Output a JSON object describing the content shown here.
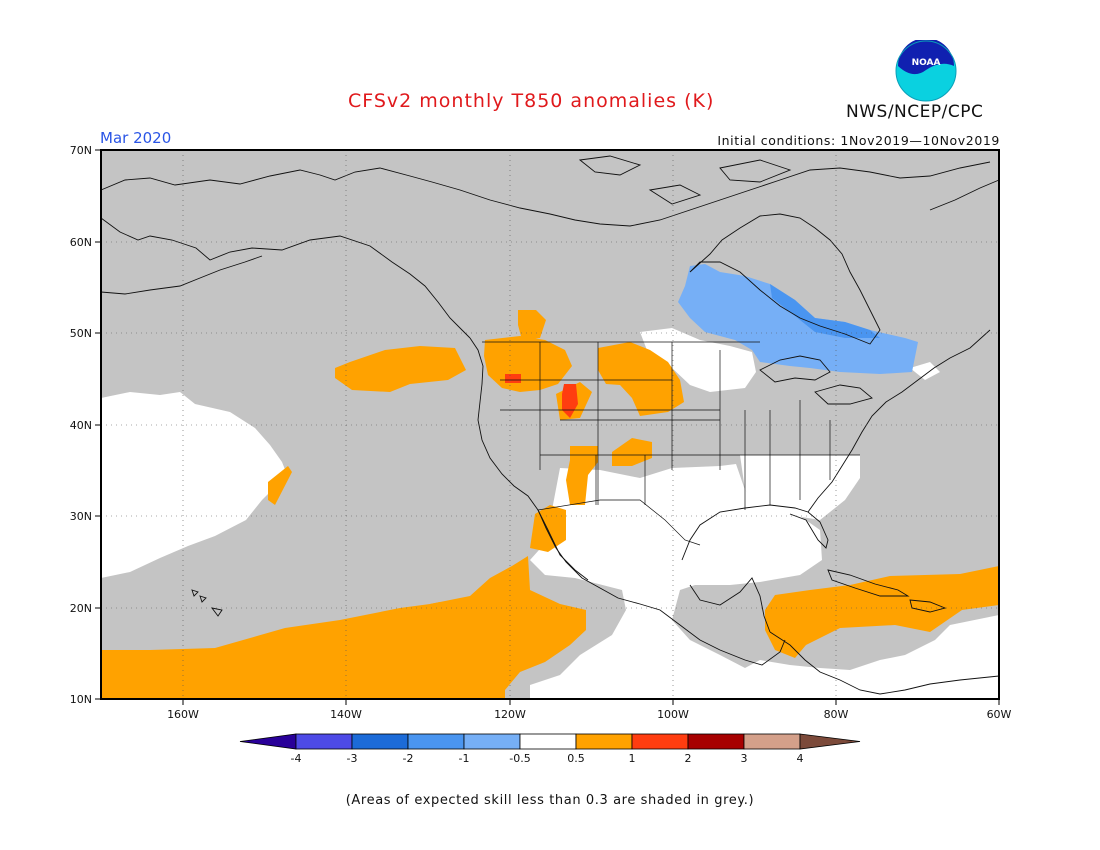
{
  "header": {
    "title": "CFSv2 monthly T850 anomalies (K)",
    "month": "Mar 2020",
    "initial_conditions": "Initial conditions: 1Nov2019—10Nov2019",
    "agency": "NWS/NCEP/CPC",
    "logo_text": "NOAA"
  },
  "map": {
    "projection": "lat-lon",
    "lon_range": [
      -170,
      -60
    ],
    "lat_range": [
      10,
      70
    ],
    "lat_labels": [
      "70N",
      "60N",
      "50N",
      "40N",
      "30N",
      "20N",
      "10N"
    ],
    "lon_labels": [
      "160W",
      "140W",
      "120W",
      "100W",
      "80W",
      "60W"
    ],
    "regions": [
      {
        "category": "skill < 0.3 (grey)",
        "color": "#c4c4c4"
      },
      {
        "category": "-1 to -0.5",
        "color": "#76aff6",
        "area": "Hudson Bay / Ontario"
      },
      {
        "category": "0.5 to 1",
        "color": "#ffa200",
        "area": "Pacific northwest, Rockies, eastern Pacific, Caribbean"
      },
      {
        "category": "1 to 2",
        "color": "#ff3d10",
        "area": "Idaho / Utah spots"
      }
    ]
  },
  "colorbar": {
    "colors": [
      "#290099",
      "#4d4ae6",
      "#1c6bd8",
      "#4a95f0",
      "#76aff6",
      "#ffffff",
      "#ffa200",
      "#ff3d10",
      "#a70000",
      "#d4a08a",
      "#7c4a3a"
    ],
    "labels": [
      "-4",
      "-3",
      "-2",
      "-1",
      "-0.5",
      "0.5",
      "1",
      "2",
      "3",
      "4"
    ]
  },
  "footnote": "(Areas of expected skill less than 0.3 are shaded in grey.)"
}
